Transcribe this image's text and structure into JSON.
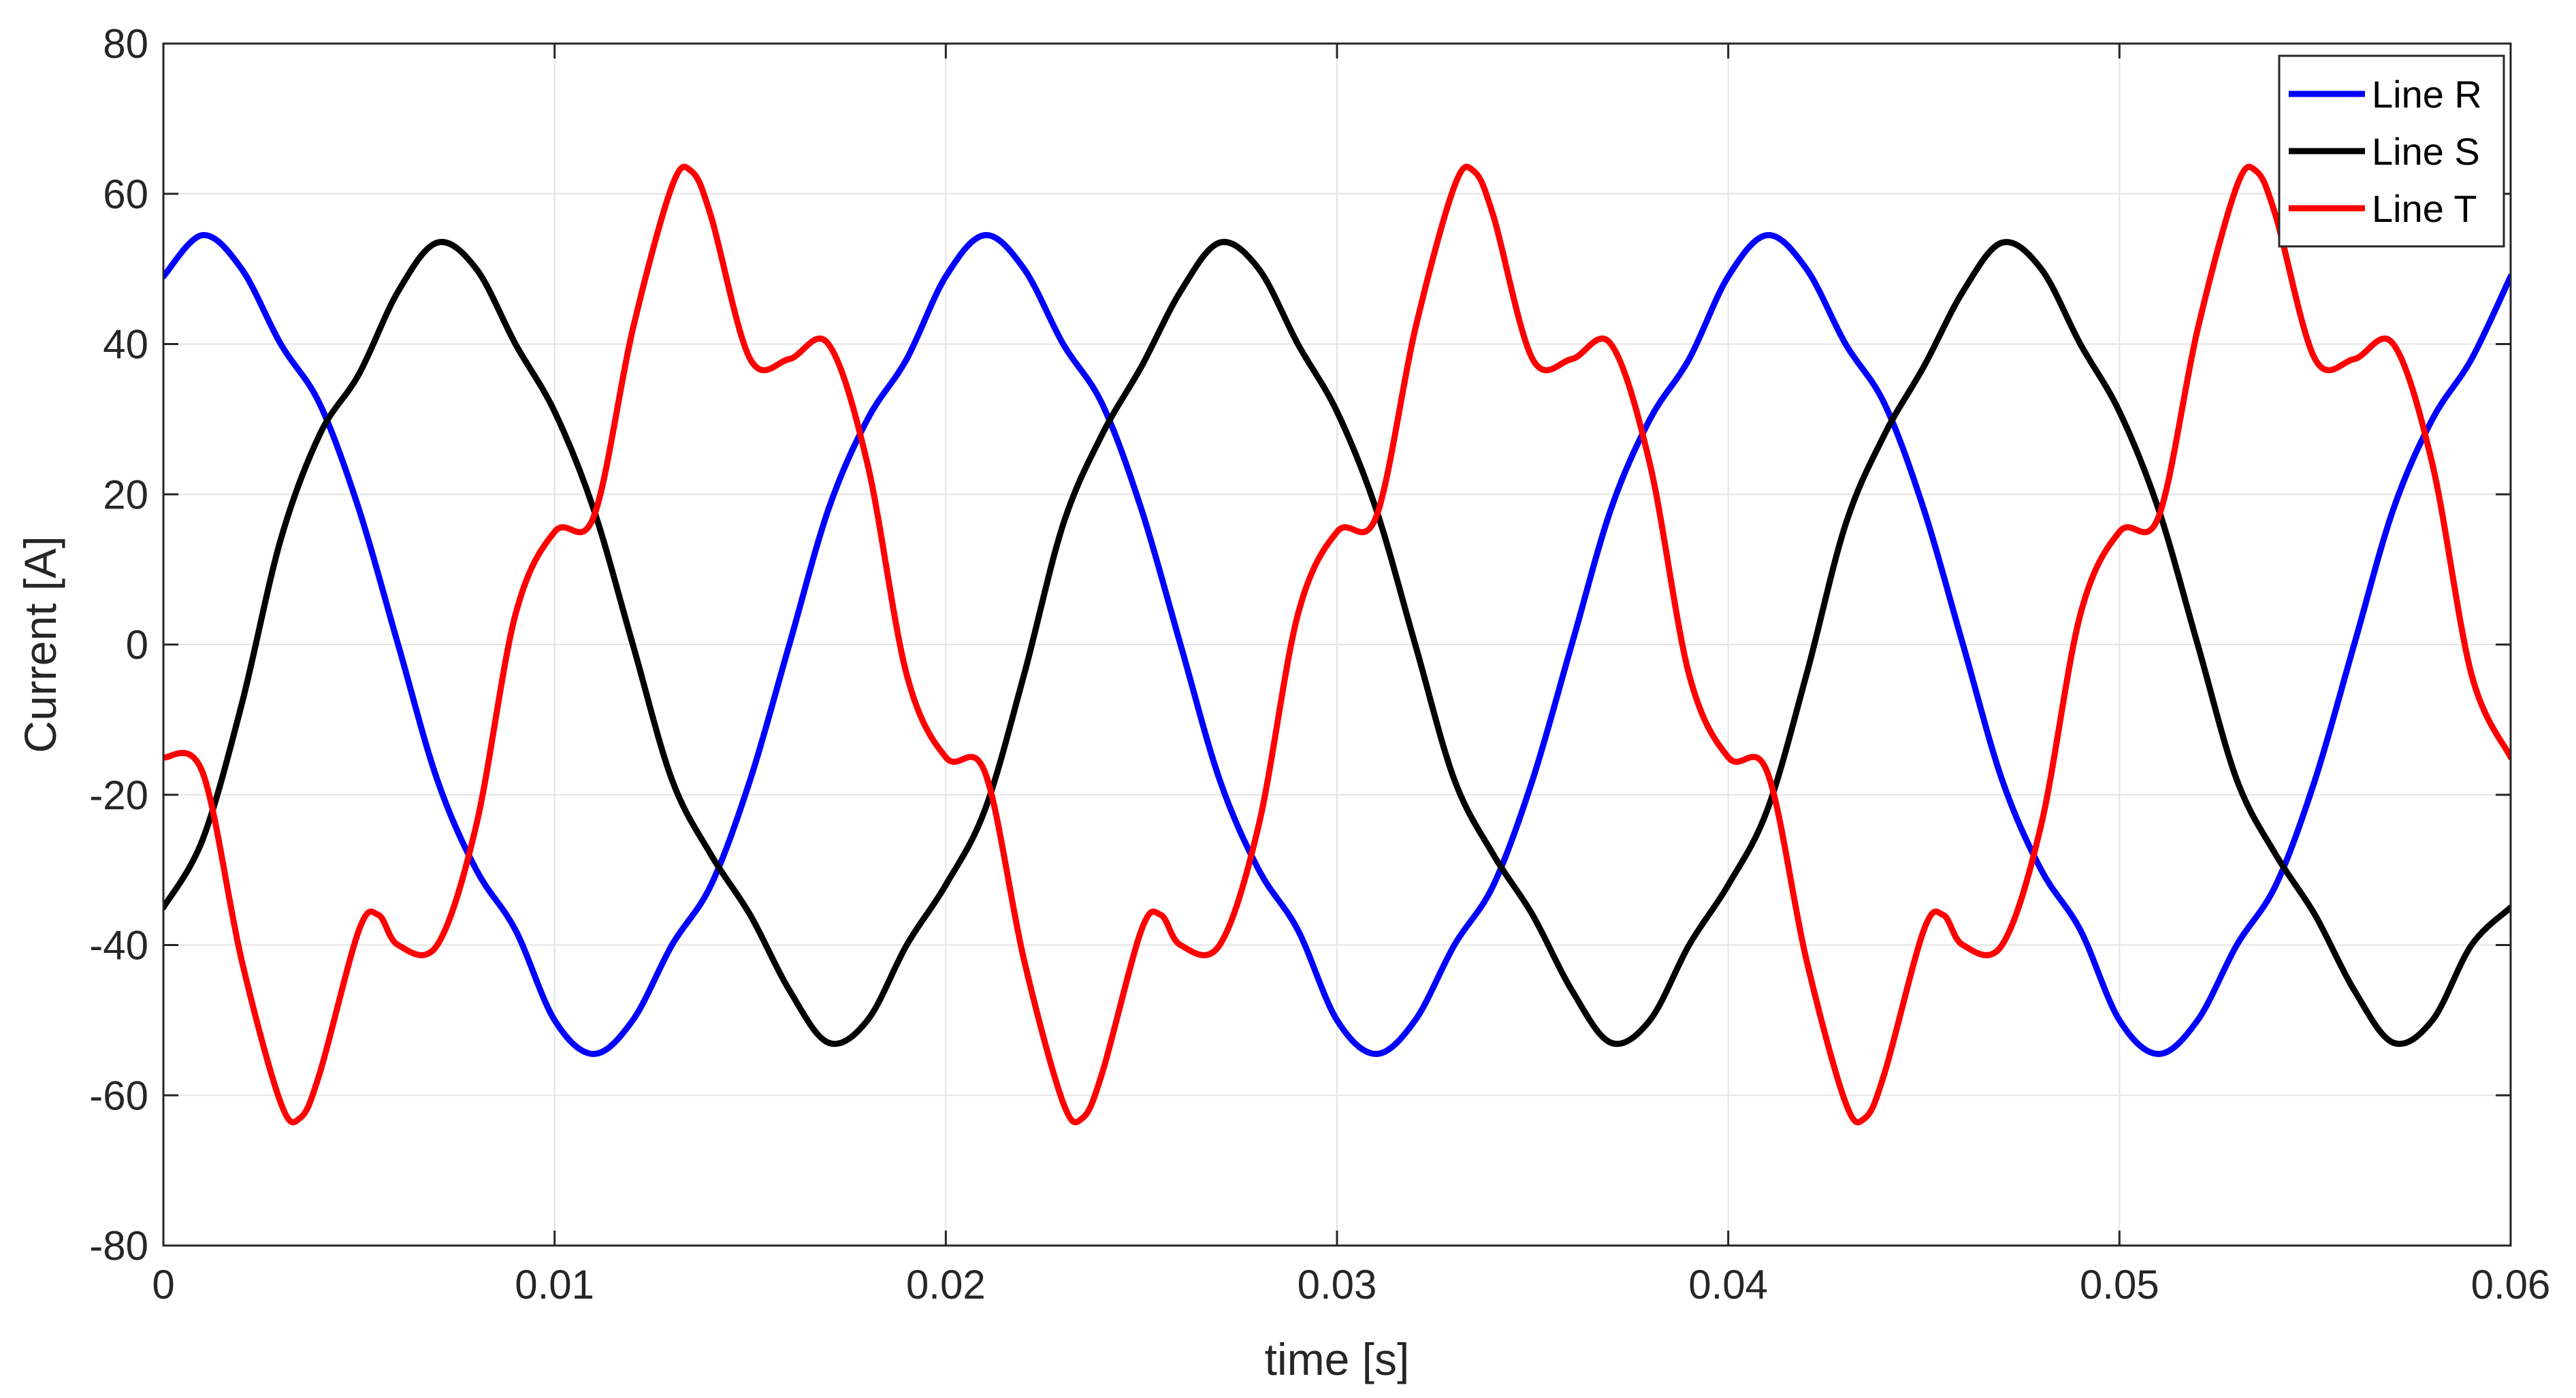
{
  "chart_data": {
    "type": "line",
    "xlabel": "time [s]",
    "ylabel": "Current [A]",
    "xlim": [
      0,
      0.06
    ],
    "ylim": [
      -80,
      80
    ],
    "xticks": [
      0,
      0.01,
      0.02,
      0.03,
      0.04,
      0.05,
      0.06
    ],
    "xtick_labels": [
      "0",
      "0.01",
      "0.02",
      "0.03",
      "0.04",
      "0.05",
      "0.06"
    ],
    "yticks": [
      -80,
      -60,
      -40,
      -20,
      0,
      20,
      40,
      60,
      80
    ],
    "ytick_labels": [
      "-80",
      "-60",
      "-40",
      "-20",
      "0",
      "20",
      "40",
      "60",
      "80"
    ],
    "grid": true,
    "legend_position": "top-right",
    "series": [
      {
        "name": "Line R",
        "color": "#0000ff",
        "x": [
          0,
          0.001,
          0.002,
          0.003,
          0.004,
          0.005,
          0.006,
          0.007,
          0.008,
          0.009,
          0.01,
          0.011,
          0.012,
          0.013,
          0.014,
          0.015,
          0.016,
          0.017,
          0.018,
          0.019,
          0.02,
          0.021,
          0.022,
          0.023,
          0.024,
          0.025,
          0.026,
          0.027,
          0.028,
          0.029,
          0.03,
          0.031,
          0.032,
          0.033,
          0.034,
          0.035,
          0.036,
          0.037,
          0.038,
          0.039,
          0.04,
          0.041,
          0.042,
          0.043,
          0.044,
          0.045,
          0.046,
          0.047,
          0.048,
          0.049,
          0.05,
          0.051,
          0.052,
          0.053,
          0.054,
          0.055,
          0.056,
          0.057,
          0.058,
          0.059,
          0.06
        ],
        "y": [
          49,
          54.5,
          50,
          40,
          32,
          18,
          0,
          -18,
          -30,
          -38,
          -50,
          -54.5,
          -50,
          -40,
          -32,
          -18,
          0,
          18,
          30,
          38,
          49,
          54.5,
          50,
          40,
          32,
          18,
          0,
          -18,
          -30,
          -38,
          -50,
          -54.5,
          -50,
          -40,
          -32,
          -18,
          0,
          18,
          30,
          38,
          49,
          54.5,
          50,
          40,
          32,
          18,
          0,
          -18,
          -30,
          -38,
          -50,
          -54.5,
          -50,
          -40,
          -32,
          -18,
          0,
          18,
          30,
          38,
          49
        ]
      },
      {
        "name": "Line S",
        "color": "#000000",
        "x": [
          0,
          0.001,
          0.002,
          0.003,
          0.004,
          0.005,
          0.006,
          0.007,
          0.008,
          0.009,
          0.01,
          0.011,
          0.012,
          0.013,
          0.014,
          0.015,
          0.016,
          0.017,
          0.018,
          0.019,
          0.02,
          0.021,
          0.022,
          0.023,
          0.024,
          0.025,
          0.026,
          0.027,
          0.028,
          0.029,
          0.03,
          0.031,
          0.032,
          0.033,
          0.034,
          0.035,
          0.036,
          0.037,
          0.038,
          0.039,
          0.04,
          0.041,
          0.042,
          0.043,
          0.044,
          0.045,
          0.046,
          0.047,
          0.048,
          0.049,
          0.05,
          0.051,
          0.052,
          0.053,
          0.054,
          0.055,
          0.056,
          0.057,
          0.058,
          0.059,
          0.06
        ],
        "y": [
          -35,
          -26,
          -8,
          14,
          28,
          36,
          47,
          53.5,
          50,
          40,
          31,
          18,
          0,
          -18,
          -28,
          -36,
          -46,
          -53,
          -50,
          -40,
          -32,
          -22,
          -4,
          16,
          28,
          37,
          47,
          53.5,
          50,
          40,
          31,
          18,
          0,
          -18,
          -28,
          -36,
          -46,
          -53,
          -50,
          -40,
          -32,
          -22,
          -4,
          16,
          28,
          37,
          47,
          53.5,
          50,
          40,
          31,
          18,
          0,
          -18,
          -28,
          -36,
          -46,
          -53,
          -50,
          -40,
          -35
        ]
      },
      {
        "name": "Line T",
        "color": "#ff0000",
        "x": [
          0,
          0.001,
          0.002,
          0.003,
          0.0035,
          0.004,
          0.005,
          0.0055,
          0.006,
          0.007,
          0.008,
          0.009,
          0.01,
          0.011,
          0.012,
          0.013,
          0.0135,
          0.014,
          0.015,
          0.016,
          0.017,
          0.018,
          0.019,
          0.02,
          0.021,
          0.022,
          0.023,
          0.0235,
          0.024,
          0.025,
          0.0255,
          0.026,
          0.027,
          0.028,
          0.029,
          0.03,
          0.031,
          0.032,
          0.033,
          0.0335,
          0.034,
          0.035,
          0.036,
          0.037,
          0.038,
          0.039,
          0.04,
          0.041,
          0.042,
          0.043,
          0.0435,
          0.044,
          0.045,
          0.0455,
          0.046,
          0.047,
          0.048,
          0.049,
          0.05,
          0.051,
          0.052,
          0.053,
          0.0535,
          0.054,
          0.055,
          0.056,
          0.057,
          0.058,
          0.059,
          0.06
        ],
        "y": [
          -15,
          -17,
          -42,
          -61,
          -63,
          -57,
          -38,
          -36,
          -40,
          -40,
          -24,
          4,
          15,
          17,
          42,
          61,
          63,
          57,
          38,
          38,
          40,
          24,
          -4,
          -15,
          -17,
          -42,
          -61,
          -63,
          -57,
          -38,
          -36,
          -40,
          -40,
          -24,
          4,
          15,
          17,
          42,
          61,
          63,
          57,
          38,
          38,
          40,
          24,
          -4,
          -15,
          -17,
          -42,
          -61,
          -63,
          -57,
          -38,
          -36,
          -40,
          -40,
          -24,
          4,
          15,
          17,
          42,
          61,
          63,
          57,
          38,
          38,
          40,
          24,
          -4,
          -15
        ]
      }
    ]
  }
}
